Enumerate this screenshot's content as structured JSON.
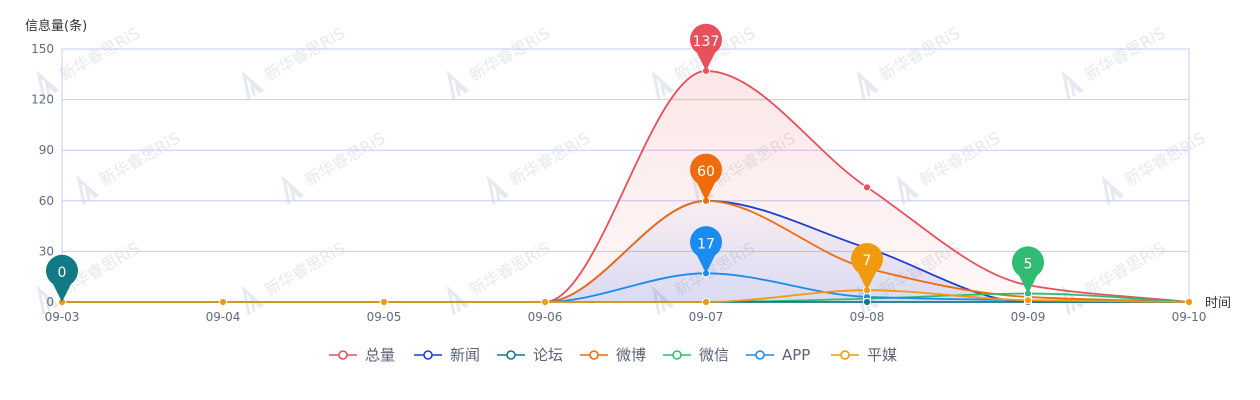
{
  "chart_data": {
    "type": "line",
    "smooth": true,
    "ylabel": "信息量(条)",
    "xlabel": "时间",
    "categories": [
      "09-03",
      "09-04",
      "09-05",
      "09-06",
      "09-07",
      "09-08",
      "09-09",
      "09-10"
    ],
    "ylim": [
      0,
      150
    ],
    "yticks": [
      0,
      30,
      60,
      90,
      120,
      150
    ],
    "grid": true,
    "legend_position": "bottom-center",
    "series": [
      {
        "name": "总量",
        "color": "#e8505b",
        "values": [
          0,
          0,
          0,
          0,
          137,
          68,
          10,
          0
        ],
        "area": true
      },
      {
        "name": "新闻",
        "color": "#1d3fcf",
        "values": [
          0,
          0,
          0,
          0,
          60,
          32,
          0,
          0
        ],
        "area": true
      },
      {
        "name": "论坛",
        "color": "#117a85",
        "values": [
          0,
          0,
          0,
          0,
          0,
          0,
          0,
          0
        ]
      },
      {
        "name": "微博",
        "color": "#ef6c0c",
        "values": [
          0,
          0,
          0,
          0,
          60,
          20,
          3,
          0
        ]
      },
      {
        "name": "微信",
        "color": "#2fbc72",
        "values": [
          0,
          0,
          0,
          0,
          0,
          2,
          5,
          0
        ]
      },
      {
        "name": "APP",
        "color": "#1a8cf0",
        "values": [
          0,
          0,
          0,
          0,
          17,
          3,
          1,
          0
        ]
      },
      {
        "name": "平媒",
        "color": "#f09a0e",
        "values": [
          0,
          0,
          0,
          0,
          0,
          7,
          1,
          0
        ]
      }
    ],
    "annotations": [
      {
        "series": "总量",
        "category": "09-07",
        "value": 137,
        "label": "137"
      },
      {
        "series": "微博",
        "category": "09-07",
        "value": 60,
        "label": "60"
      },
      {
        "series": "APP",
        "category": "09-07",
        "value": 17,
        "label": "17"
      },
      {
        "series": "平媒",
        "category": "09-08",
        "value": 7,
        "label": "7"
      },
      {
        "series": "微信",
        "category": "09-09",
        "value": 5,
        "label": "5"
      },
      {
        "series": "论坛",
        "category": "09-03",
        "value": 0,
        "label": "0"
      }
    ],
    "watermark": "新华睿思RiS"
  }
}
